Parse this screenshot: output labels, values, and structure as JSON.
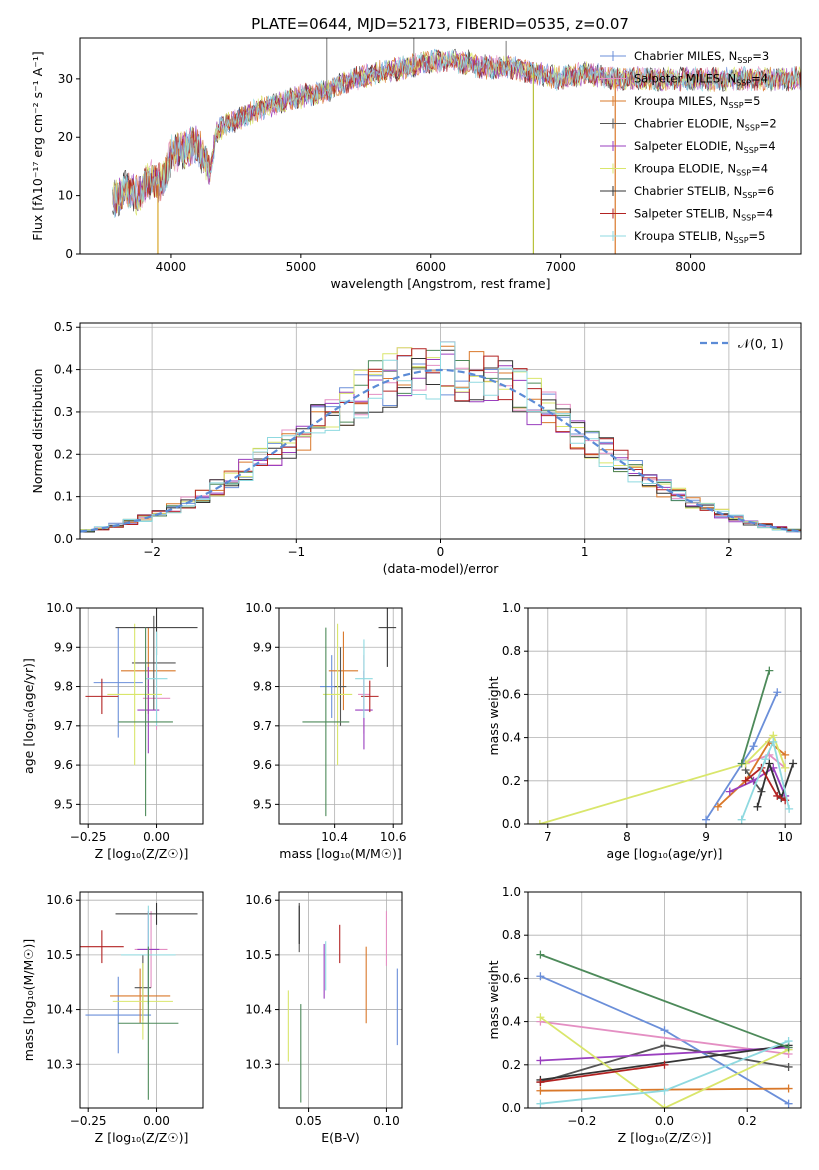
{
  "figure": {
    "title": "PLATE=0644, MJD=52173, FIBERID=0535, z=0.07",
    "colors": [
      "#6b8fd9",
      "#e48fc3",
      "#d9782a",
      "#555555",
      "#9a3fbf",
      "#d9e66b",
      "#333333",
      "#b22222",
      "#8fd9e0",
      "#4d8a5a"
    ]
  },
  "chart_data": [
    {
      "type": "line",
      "id": "spectrum",
      "xlabel": "wavelength [Angstrom, rest frame]",
      "ylabel": "Flux [fλ10⁻¹⁷ erg cm⁻² s⁻¹ A⁻¹]",
      "xlim": [
        3300,
        8850
      ],
      "ylim": [
        0,
        37
      ],
      "xticks": [
        4000,
        5000,
        6000,
        7000,
        8000
      ],
      "yticks": [
        0,
        10,
        20,
        30
      ],
      "grid": false,
      "legend": "right",
      "continuum": [
        [
          3550,
          9
        ],
        [
          3650,
          11
        ],
        [
          3750,
          10
        ],
        [
          3850,
          13
        ],
        [
          3900,
          12
        ],
        [
          3950,
          13
        ],
        [
          4000,
          17
        ],
        [
          4100,
          18
        ],
        [
          4200,
          19
        ],
        [
          4300,
          14
        ],
        [
          4350,
          21
        ],
        [
          4500,
          23
        ],
        [
          4700,
          25
        ],
        [
          4850,
          26
        ],
        [
          5000,
          27
        ],
        [
          5200,
          28
        ],
        [
          5400,
          30
        ],
        [
          5600,
          31
        ],
        [
          5800,
          32
        ],
        [
          6000,
          33
        ],
        [
          6200,
          33
        ],
        [
          6400,
          32
        ],
        [
          6600,
          32
        ],
        [
          6800,
          31
        ],
        [
          7000,
          30
        ],
        [
          7200,
          31
        ],
        [
          7400,
          30
        ],
        [
          7600,
          30
        ],
        [
          7800,
          30
        ],
        [
          8000,
          30
        ],
        [
          8200,
          30
        ],
        [
          8400,
          30
        ],
        [
          8600,
          30
        ],
        [
          8850,
          30
        ]
      ],
      "spikes": [
        [
          5200,
          37
        ],
        [
          5870,
          37
        ],
        [
          6290,
          35
        ],
        [
          6580,
          36.5
        ]
      ],
      "drops": [
        [
          3900,
          0
        ],
        [
          6790,
          0
        ],
        [
          7420,
          0
        ]
      ],
      "legend_entries": [
        {
          "label": "Chabrier MILES, N",
          "sub": "SSP",
          "count": "=3"
        },
        {
          "label": "Salpeter MILES, N",
          "sub": "SSP",
          "count": "=4"
        },
        {
          "label": "Kroupa MILES, N",
          "sub": "SSP",
          "count": "=5"
        },
        {
          "label": "Chabrier ELODIE, N",
          "sub": "SSP",
          "count": "=2"
        },
        {
          "label": "Salpeter ELODIE, N",
          "sub": "SSP",
          "count": "=4"
        },
        {
          "label": "Kroupa ELODIE, N",
          "sub": "SSP",
          "count": "=4"
        },
        {
          "label": "Chabrier STELIB, N",
          "sub": "SSP",
          "count": "=6"
        },
        {
          "label": "Salpeter STELIB, N",
          "sub": "SSP",
          "count": "=4"
        },
        {
          "label": "Kroupa STELIB, N",
          "sub": "SSP",
          "count": "=5"
        }
      ]
    },
    {
      "type": "histogram",
      "id": "residuals",
      "xlabel": "(data-model)/error",
      "ylabel": "Normed distribution",
      "xlim": [
        -2.5,
        2.5
      ],
      "ylim": [
        0,
        0.51
      ],
      "xticks": [
        -2,
        -1,
        0,
        1,
        2
      ],
      "xticklabels": [
        "−2",
        "−1",
        "0",
        "1",
        "2"
      ],
      "yticks": [
        0.0,
        0.1,
        0.2,
        0.3,
        0.4,
        0.5
      ],
      "yticklabels": [
        "0.0",
        "0.1",
        "0.2",
        "0.3",
        "0.4",
        "0.5"
      ],
      "grid": true,
      "legend": "top-right",
      "legend_label": "𝒩(0, 1)",
      "bin_width": 0.1
    },
    {
      "type": "scatter",
      "id": "age_vs_Z",
      "xlabel": "Z [log₁₀(Z/Z☉)]",
      "ylabel": "age  [log₁₀(age/yr)]",
      "xlim": [
        -0.28,
        0.17
      ],
      "ylim": [
        9.45,
        10.0
      ],
      "xticks": [
        -0.25,
        0.0
      ],
      "xticklabels": [
        "−0.25",
        "0.00"
      ],
      "yticks": [
        9.5,
        9.6,
        9.7,
        9.8,
        9.9,
        10.0
      ],
      "yticklabels": [
        "9.5",
        "9.6",
        "9.7",
        "9.8",
        "9.9",
        "10.0"
      ],
      "grid": true,
      "points": [
        {
          "x": -0.14,
          "xerr": 0.09,
          "y": 9.81,
          "yerr": 0.14
        },
        {
          "x": 0.0,
          "xerr": 0.05,
          "y": 9.77,
          "yerr": 0.08
        },
        {
          "x": -0.03,
          "xerr": 0.1,
          "y": 9.84,
          "yerr": 0.11
        },
        {
          "x": -0.01,
          "xerr": 0.08,
          "y": 9.86,
          "yerr": 0.12
        },
        {
          "x": -0.03,
          "xerr": 0.04,
          "y": 9.74,
          "yerr": 0.11
        },
        {
          "x": -0.08,
          "xerr": 0.1,
          "y": 9.78,
          "yerr": 0.18
        },
        {
          "x": 0.0,
          "xerr": 0.15,
          "y": 9.95,
          "yerr": 0.07
        },
        {
          "x": -0.2,
          "xerr": 0.06,
          "y": 9.775,
          "yerr": 0.045
        },
        {
          "x": 0.0,
          "xerr": 0.04,
          "y": 9.82,
          "yerr": 0.12
        },
        {
          "x": -0.04,
          "xerr": 0.1,
          "y": 9.71,
          "yerr": 0.24
        }
      ]
    },
    {
      "type": "scatter",
      "id": "age_vs_mass",
      "xlabel": "mass [log₁₀(M/M☉)]",
      "ylabel": "",
      "xlim": [
        10.21,
        10.63
      ],
      "ylim": [
        9.45,
        10.0
      ],
      "xticks": [
        10.4,
        10.6
      ],
      "xticklabels": [
        "10.4",
        "10.6"
      ],
      "yticks": [
        9.5,
        9.6,
        9.7,
        9.8,
        9.9,
        10.0
      ],
      "yticklabels": [
        "9.5",
        "9.6",
        "9.7",
        "9.8",
        "9.9",
        "10.0"
      ],
      "grid": true,
      "points": [
        {
          "x": 10.39,
          "xerr": 0.04,
          "y": 9.8,
          "yerr": 0.08
        },
        {
          "x": 10.5,
          "xerr": 0.02,
          "y": 9.78,
          "yerr": 0.1
        },
        {
          "x": 10.43,
          "xerr": 0.05,
          "y": 9.84,
          "yerr": 0.1
        },
        {
          "x": 10.42,
          "xerr": 0.02,
          "y": 9.8,
          "yerr": 0.1
        },
        {
          "x": 10.5,
          "xerr": 0.03,
          "y": 9.74,
          "yerr": 0.1
        },
        {
          "x": 10.41,
          "xerr": 0.05,
          "y": 9.78,
          "yerr": 0.18
        },
        {
          "x": 10.58,
          "xerr": 0.03,
          "y": 9.95,
          "yerr": 0.1
        },
        {
          "x": 10.52,
          "xerr": 0.03,
          "y": 9.775,
          "yerr": 0.04
        },
        {
          "x": 10.5,
          "xerr": 0.03,
          "y": 9.82,
          "yerr": 0.1
        },
        {
          "x": 10.37,
          "xerr": 0.08,
          "y": 9.71,
          "yerr": 0.24
        }
      ]
    },
    {
      "type": "line",
      "id": "weight_vs_age",
      "xlabel": "age  [log₁₀(age/yr)]",
      "ylabel": "mass weight",
      "xlim": [
        6.75,
        10.2
      ],
      "ylim": [
        0,
        1.0
      ],
      "xticks": [
        7,
        8,
        9,
        10
      ],
      "xticklabels": [
        "7",
        "8",
        "9",
        "10"
      ],
      "yticks": [
        0.0,
        0.2,
        0.4,
        0.6,
        0.8,
        1.0
      ],
      "yticklabels": [
        "0.0",
        "0.2",
        "0.4",
        "0.6",
        "0.8",
        "1.0"
      ],
      "grid": true,
      "series": [
        {
          "points": [
            [
              9.0,
              0.02
            ],
            [
              9.6,
              0.36
            ],
            [
              9.9,
              0.61
            ]
          ]
        },
        {
          "points": [
            [
              9.5,
              0.28
            ],
            [
              9.8,
              0.32
            ],
            [
              10.0,
              0.26
            ]
          ]
        },
        {
          "points": [
            [
              9.15,
              0.08
            ],
            [
              9.5,
              0.2
            ],
            [
              9.8,
              0.38
            ],
            [
              10.0,
              0.32
            ]
          ]
        },
        {
          "points": [
            [
              9.5,
              0.25
            ],
            [
              9.7,
              0.15
            ]
          ]
        },
        {
          "points": [
            [
              9.3,
              0.15
            ],
            [
              9.6,
              0.2
            ],
            [
              9.85,
              0.26
            ],
            [
              10.0,
              0.13
            ]
          ]
        },
        {
          "points": [
            [
              6.9,
              0.0
            ],
            [
              9.5,
              0.28
            ],
            [
              9.85,
              0.41
            ],
            [
              10.0,
              0.26
            ]
          ]
        },
        {
          "points": [
            [
              9.65,
              0.08
            ],
            [
              9.8,
              0.28
            ],
            [
              9.95,
              0.12
            ],
            [
              10.1,
              0.28
            ]
          ]
        },
        {
          "points": [
            [
              9.5,
              0.2
            ],
            [
              9.7,
              0.26
            ],
            [
              9.9,
              0.13
            ],
            [
              10.0,
              0.11
            ]
          ]
        },
        {
          "points": [
            [
              9.45,
              0.02
            ],
            [
              9.75,
              0.3
            ],
            [
              9.85,
              0.38
            ],
            [
              10.05,
              0.07
            ]
          ]
        },
        {
          "points": [
            [
              9.45,
              0.28
            ],
            [
              9.8,
              0.71
            ]
          ]
        }
      ]
    },
    {
      "type": "scatter",
      "id": "mass_vs_Z",
      "xlabel": "Z [log₁₀(Z/Z☉)]",
      "ylabel": "mass [log₁₀(M/M☉)]",
      "xlim": [
        -0.28,
        0.17
      ],
      "ylim": [
        10.22,
        10.615
      ],
      "xticks": [
        -0.25,
        0.0
      ],
      "xticklabels": [
        "−0.25",
        "0.00"
      ],
      "yticks": [
        10.3,
        10.4,
        10.5,
        10.6
      ],
      "yticklabels": [
        "10.3",
        "10.4",
        "10.5",
        "10.6"
      ],
      "grid": true,
      "points": [
        {
          "x": -0.14,
          "xerr": 0.12,
          "y": 10.39,
          "yerr": 0.07
        },
        {
          "x": -0.02,
          "xerr": 0.06,
          "y": 10.51,
          "yerr": 0.07
        },
        {
          "x": -0.06,
          "xerr": 0.11,
          "y": 10.425,
          "yerr": 0.05
        },
        {
          "x": -0.05,
          "xerr": 0.03,
          "y": 10.44,
          "yerr": 0.06
        },
        {
          "x": -0.03,
          "xerr": 0.04,
          "y": 10.51,
          "yerr": 0.07
        },
        {
          "x": -0.05,
          "xerr": 0.11,
          "y": 10.415,
          "yerr": 0.07
        },
        {
          "x": 0.0,
          "xerr": 0.15,
          "y": 10.575,
          "yerr": 0.02
        },
        {
          "x": -0.2,
          "xerr": 0.08,
          "y": 10.515,
          "yerr": 0.03
        },
        {
          "x": -0.03,
          "xerr": 0.1,
          "y": 10.5,
          "yerr": 0.09
        },
        {
          "x": -0.03,
          "xerr": 0.11,
          "y": 10.375,
          "yerr": 0.14
        }
      ]
    },
    {
      "type": "errorbar",
      "id": "mass_vs_ebv",
      "xlabel": "E(B-V)",
      "ylabel": "",
      "xlim": [
        0.031,
        0.11
      ],
      "ylim": [
        10.22,
        10.615
      ],
      "xticks": [
        0.05,
        0.1
      ],
      "xticklabels": [
        "0.05",
        "0.10"
      ],
      "yticks": [
        10.3,
        10.4,
        10.5,
        10.6
      ],
      "yticklabels": [
        "10.3",
        "10.4",
        "10.5",
        "10.6"
      ],
      "grid": true,
      "points": [
        {
          "x": 0.107,
          "y": 10.405,
          "yerr": 0.07
        },
        {
          "x": 0.1,
          "y": 10.53,
          "yerr": 0.05
        },
        {
          "x": 0.087,
          "y": 10.445,
          "yerr": 0.07
        },
        {
          "x": 0.044,
          "y": 10.55,
          "yerr": 0.045
        },
        {
          "x": 0.06,
          "y": 10.47,
          "yerr": 0.05
        },
        {
          "x": 0.037,
          "y": 10.37,
          "yerr": 0.065
        },
        {
          "x": 0.044,
          "y": 10.555,
          "yerr": 0.035
        },
        {
          "x": 0.07,
          "y": 10.52,
          "yerr": 0.035
        },
        {
          "x": 0.061,
          "y": 10.48,
          "yerr": 0.045
        },
        {
          "x": 0.045,
          "y": 10.32,
          "yerr": 0.09
        }
      ]
    },
    {
      "type": "line",
      "id": "weight_vs_Z",
      "xlabel": "Z [log₁₀(Z/Z☉)]",
      "ylabel": "mass weight",
      "xlim": [
        -0.33,
        0.33
      ],
      "ylim": [
        0,
        1.0
      ],
      "xticks": [
        -0.2,
        0.0,
        0.2
      ],
      "xticklabels": [
        "−0.2",
        "0.0",
        "0.2"
      ],
      "yticks": [
        0.0,
        0.2,
        0.4,
        0.6,
        0.8,
        1.0
      ],
      "yticklabels": [
        "0.0",
        "0.2",
        "0.4",
        "0.6",
        "0.8",
        "1.0"
      ],
      "grid": true,
      "series": [
        {
          "points": [
            [
              -0.3,
              0.61
            ],
            [
              0.0,
              0.36
            ],
            [
              0.3,
              0.02
            ]
          ]
        },
        {
          "points": [
            [
              -0.3,
              0.4
            ],
            [
              0.3,
              0.25
            ]
          ]
        },
        {
          "points": [
            [
              -0.3,
              0.08
            ],
            [
              0.3,
              0.09
            ]
          ]
        },
        {
          "points": [
            [
              -0.3,
              0.12
            ],
            [
              0.0,
              0.29
            ],
            [
              0.3,
              0.19
            ]
          ]
        },
        {
          "points": [
            [
              -0.3,
              0.22
            ],
            [
              0.3,
              0.28
            ]
          ]
        },
        {
          "points": [
            [
              -0.3,
              0.42
            ],
            [
              0.0,
              0.0
            ],
            [
              0.3,
              0.27
            ]
          ]
        },
        {
          "points": [
            [
              -0.3,
              0.13
            ],
            [
              0.3,
              0.29
            ]
          ]
        },
        {
          "points": [
            [
              -0.3,
              0.12
            ],
            [
              0.0,
              0.2
            ]
          ]
        },
        {
          "points": [
            [
              -0.3,
              0.02
            ],
            [
              0.0,
              0.08
            ],
            [
              0.3,
              0.31
            ]
          ]
        },
        {
          "points": [
            [
              -0.3,
              0.71
            ],
            [
              0.3,
              0.28
            ]
          ]
        }
      ]
    }
  ]
}
